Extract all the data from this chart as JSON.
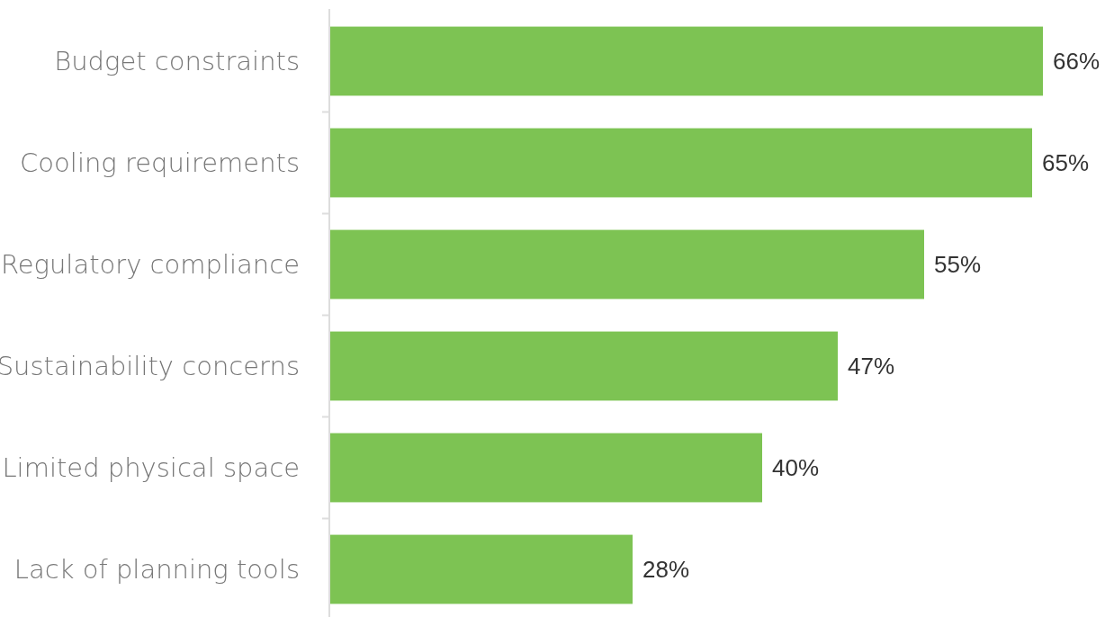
{
  "chart_data": {
    "type": "bar",
    "orientation": "horizontal",
    "categories": [
      "Budget constraints",
      "Cooling requirements",
      "Regulatory compliance",
      "Sustainability concerns",
      "Limited physical space",
      "Lack of planning tools"
    ],
    "values": [
      66,
      65,
      55,
      47,
      40,
      28
    ],
    "value_labels": [
      "66%",
      "65%",
      "55%",
      "47%",
      "40%",
      "28%"
    ],
    "color": "#7dc353"
  }
}
